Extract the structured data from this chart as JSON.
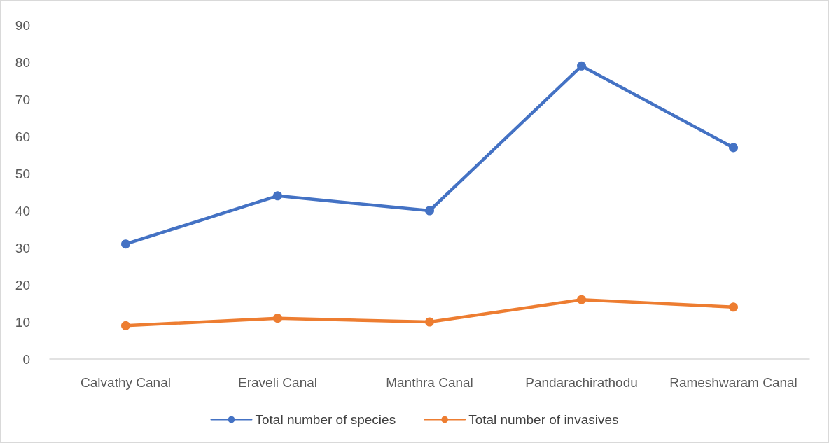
{
  "chart_data": {
    "type": "line",
    "categories": [
      "Calvathy Canal",
      "Eraveli Canal",
      "Manthra Canal",
      "Pandarachirathodu",
      "Rameshwaram Canal"
    ],
    "series": [
      {
        "name": "Total number of species",
        "color": "#4472c4",
        "values": [
          31,
          44,
          40,
          79,
          57
        ]
      },
      {
        "name": "Total number of invasives",
        "color": "#ed7d31",
        "values": [
          9,
          11,
          10,
          16,
          14
        ]
      }
    ],
    "ylim": [
      0,
      90
    ],
    "yticks": [
      0,
      10,
      20,
      30,
      40,
      50,
      60,
      70,
      80,
      90
    ],
    "grid": false,
    "legend": "bottom",
    "marker": "circle",
    "line_style": "solid"
  }
}
